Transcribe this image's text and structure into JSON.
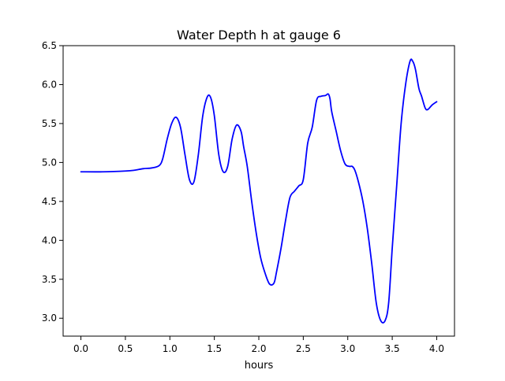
{
  "chart_data": {
    "type": "line",
    "title": "Water Depth h at gauge 6",
    "xlabel": "hours",
    "ylabel": "",
    "xlim": [
      -0.2,
      4.2
    ],
    "ylim": [
      2.77,
      6.5
    ],
    "x_ticks": [
      0.0,
      0.5,
      1.0,
      1.5,
      2.0,
      2.5,
      3.0,
      3.5,
      4.0
    ],
    "x_tick_labels": [
      "0.0",
      "0.5",
      "1.0",
      "1.5",
      "2.0",
      "2.5",
      "3.0",
      "3.5",
      "4.0"
    ],
    "y_ticks": [
      3.0,
      3.5,
      4.0,
      4.5,
      5.0,
      5.5,
      6.0,
      6.5
    ],
    "y_tick_labels": [
      "3.0",
      "3.5",
      "4.0",
      "4.5",
      "5.0",
      "5.5",
      "6.0",
      "6.5"
    ],
    "grid": false,
    "legend": false,
    "series": [
      {
        "color": "#0000ff",
        "x": [
          0.0,
          0.25,
          0.5,
          0.6,
          0.7,
          0.8,
          0.88,
          0.92,
          0.97,
          1.02,
          1.07,
          1.12,
          1.17,
          1.22,
          1.27,
          1.32,
          1.37,
          1.42,
          1.46,
          1.5,
          1.55,
          1.6,
          1.65,
          1.7,
          1.75,
          1.8,
          1.83,
          1.87,
          1.92,
          1.97,
          2.02,
          2.07,
          2.12,
          2.17,
          2.2,
          2.25,
          2.3,
          2.35,
          2.4,
          2.45,
          2.5,
          2.55,
          2.6,
          2.65,
          2.7,
          2.75,
          2.78,
          2.8,
          2.82,
          2.87,
          2.92,
          2.97,
          3.02,
          3.05,
          3.08,
          3.12,
          3.17,
          3.22,
          3.27,
          3.32,
          3.37,
          3.42,
          3.46,
          3.5,
          3.55,
          3.6,
          3.65,
          3.7,
          3.73,
          3.76,
          3.8,
          3.83,
          3.87,
          3.9,
          3.95,
          4.0
        ],
        "y": [
          4.88,
          4.88,
          4.89,
          4.9,
          4.92,
          4.93,
          4.96,
          5.05,
          5.3,
          5.5,
          5.58,
          5.45,
          5.1,
          4.78,
          4.75,
          5.1,
          5.6,
          5.84,
          5.83,
          5.6,
          5.1,
          4.88,
          4.95,
          5.3,
          5.48,
          5.4,
          5.2,
          4.95,
          4.5,
          4.1,
          3.78,
          3.58,
          3.44,
          3.45,
          3.6,
          3.9,
          4.25,
          4.55,
          4.63,
          4.7,
          4.78,
          5.25,
          5.45,
          5.8,
          5.85,
          5.86,
          5.88,
          5.82,
          5.65,
          5.4,
          5.15,
          4.98,
          4.95,
          4.95,
          4.9,
          4.75,
          4.5,
          4.15,
          3.7,
          3.2,
          2.97,
          2.97,
          3.2,
          3.9,
          4.7,
          5.5,
          6.0,
          6.3,
          6.3,
          6.2,
          5.95,
          5.85,
          5.7,
          5.68,
          5.74,
          5.78
        ]
      }
    ]
  }
}
